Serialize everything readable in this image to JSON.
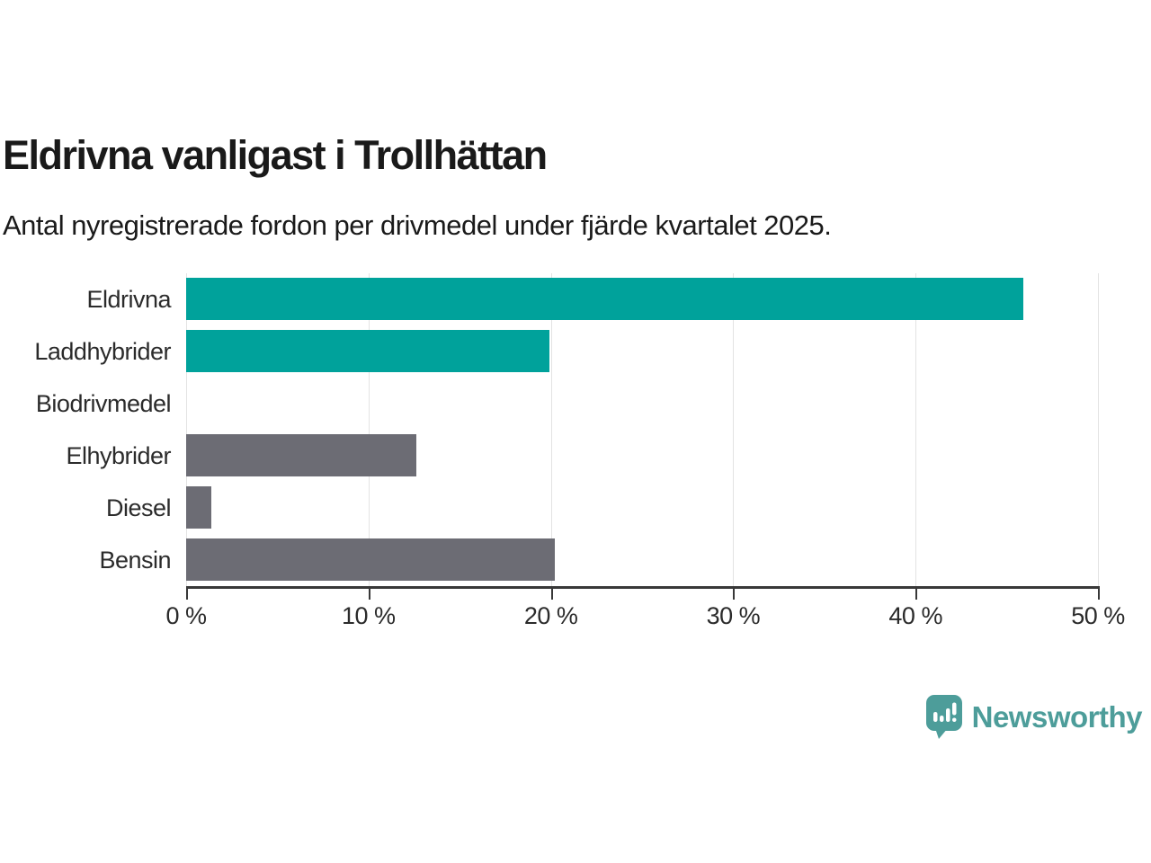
{
  "chart_data": {
    "type": "bar",
    "orientation": "horizontal",
    "title": "Eldrivna vanligast i Trollhättan",
    "subtitle": "Antal nyregistrerade fordon per drivmedel under fjärde kvartalet 2025.",
    "categories": [
      "Eldrivna",
      "Laddhybrider",
      "Biodrivmedel",
      "Elhybrider",
      "Diesel",
      "Bensin"
    ],
    "values": [
      45.9,
      19.9,
      0,
      12.6,
      1.4,
      20.2
    ],
    "unit": "%",
    "bar_colors": [
      "#00a29b",
      "#00a29b",
      "#6c6c74",
      "#6c6c74",
      "#6c6c74",
      "#6c6c74"
    ],
    "xlim": [
      0,
      50
    ],
    "xticks": [
      0,
      10,
      20,
      30,
      40,
      50
    ],
    "xtick_labels": [
      "0 %",
      "10 %",
      "20 %",
      "30 %",
      "40 %",
      "50 %"
    ],
    "grid": true,
    "legend": "none",
    "xlabel": "",
    "ylabel": ""
  },
  "footer": {
    "brand": "Newsworthy"
  },
  "colors": {
    "accent_teal": "#00a29b",
    "neutral_gray": "#6c6c74",
    "brand_teal": "#4d9d9a",
    "gridline": "#e3e3e3",
    "axis": "#383838"
  }
}
